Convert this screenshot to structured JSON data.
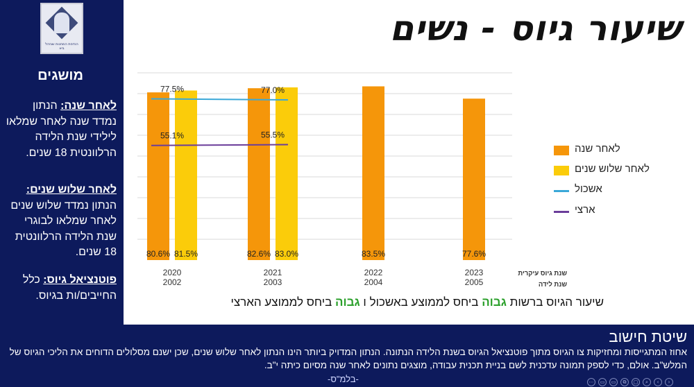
{
  "logo": {
    "caption": "הנדסת המחנות שנזהל ביא"
  },
  "sidebar": {
    "title": "מושגים",
    "definitions": [
      {
        "term": "לאחר שנה:",
        "text": " הנתון נמדד שנה לאחר שמלאו לילידי שנת הלידה הרלוונטית 18 שנים."
      },
      {
        "term": "לאחר שלוש שנים:",
        "text": " הנתון נמדד שלוש שנים לאחר שמלאו לבוגרי שנת הלידה הרלוונטית 18 שנים."
      },
      {
        "term": "פוטנציאל גיוס:",
        "text": " כלל החייבים/ות בגיוס."
      }
    ]
  },
  "header": {
    "title": "שיעור גיוס - נשים"
  },
  "axis_caption": {
    "line1": "שנת גיוס עיקרית",
    "line2": "שנת לידה"
  },
  "subtitle": {
    "part1": "שיעור הגיוס ברשות ",
    "hi1": "גבוה",
    "part2": " ביחס לממוצע באשכול ו ",
    "hi2": "גבוה",
    "part3": " ביחס לממוצע הארצי"
  },
  "footer": {
    "title": "שיטת חישוב",
    "text": "אחוז המתגייסות ומחזיקות צו הגיוס מתוך פוטנציאל הגיוס בשנת הלידה הנתונה. הנתון המדויק ביותר הינו הנתון לאחר שלוש שנים, שכן ישנם מסלולים הדוחים את הליכי הגיוס של המלש\"ב. אולם, כדי לספק תמונה עדכנית לשם בניית תכנית עבודה, מוצגים נתונים לאחר שנה מסיום כיתה י\"ב.",
    "signature": "-בלמ\"ס-"
  },
  "toolbar": {
    "buttons": [
      "⋯",
      "▭",
      "▭",
      "⧉",
      "▢",
      "⌕",
      "‹",
      "›"
    ]
  },
  "colors": {
    "navy": "#0d1a5c",
    "orange": "#f5960a",
    "yellow": "#fbcc0a",
    "cluster": "#3aa8d8",
    "national": "#6b3d9a",
    "highlight": "#2ca02c"
  },
  "chart_data": {
    "type": "bar",
    "categories": [
      {
        "year": "2020",
        "birth": "2002"
      },
      {
        "year": "2021",
        "birth": "2003"
      },
      {
        "year": "2022",
        "birth": "2004"
      },
      {
        "year": "2023",
        "birth": "2005"
      }
    ],
    "series": [
      {
        "name": "לאחר שנה",
        "kind": "bar",
        "color": "#f5960a",
        "values": [
          80.6,
          82.6,
          83.5,
          77.6
        ],
        "labels": [
          "80.6%",
          "82.6%",
          "83.5%",
          "77.6%"
        ]
      },
      {
        "name": "לאחר שלוש שנים",
        "kind": "bar",
        "color": "#fbcc0a",
        "values": [
          81.5,
          83.0,
          null,
          null
        ],
        "labels": [
          "81.5%",
          "83.0%",
          "",
          ""
        ]
      },
      {
        "name": "אשכול",
        "kind": "line",
        "color": "#3aa8d8",
        "values": [
          77.5,
          77.0,
          null,
          null
        ],
        "labels": [
          "77.5%",
          "77.0%",
          "",
          ""
        ]
      },
      {
        "name": "ארצי",
        "kind": "line",
        "color": "#6b3d9a",
        "values": [
          55.1,
          55.5,
          null,
          null
        ],
        "labels": [
          "55.1%",
          "55.5%",
          "",
          ""
        ]
      }
    ],
    "ylim": [
      0,
      90
    ],
    "grid": true,
    "legend": "right"
  }
}
